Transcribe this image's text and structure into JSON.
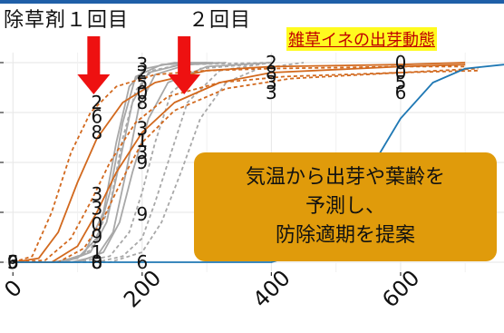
{
  "annotations": {
    "herbicide_label": "除草剤１回目",
    "second_label": "２回目",
    "title": "雑草イネの出芽動態",
    "callout_lines": [
      "気温から出芽や葉齢を",
      "予測し、",
      "防除適期を提案"
    ]
  },
  "colors": {
    "arrow": "#ee1111",
    "gray_curves": "#a8a8a8",
    "orange_curves": "#d2691e",
    "blue_curve": "#1f78b4",
    "callout_bg": "#e09b0b",
    "title_bg": "#fffb1f",
    "title_text": "#c00000"
  },
  "chart_data": {
    "type": "line",
    "title": "雑草イネの出芽動態",
    "xlabel": "",
    "ylabel": "",
    "xlim": [
      -20,
      760
    ],
    "ylim": [
      -0.05,
      1.05
    ],
    "grid": true,
    "x_ticks": [
      0,
      200,
      400,
      600
    ],
    "x_tick_labels": [
      "0",
      "200",
      "400",
      "600"
    ],
    "y_gridlines": [
      0,
      0.25,
      0.5,
      0.75,
      1.0
    ],
    "arrows_at_x": [
      125,
      265
    ],
    "series": [
      {
        "style": "gray-solid",
        "x": [
          0,
          60,
          100,
          130,
          150,
          170,
          190,
          230,
          300
        ],
        "y": [
          0,
          0.0,
          0.02,
          0.12,
          0.35,
          0.7,
          0.93,
          0.99,
          1.0
        ]
      },
      {
        "style": "gray-solid",
        "x": [
          0,
          80,
          120,
          145,
          165,
          185,
          210,
          260,
          320
        ],
        "y": [
          0,
          0.0,
          0.05,
          0.2,
          0.5,
          0.8,
          0.95,
          0.99,
          1.0
        ]
      },
      {
        "style": "gray-solid",
        "x": [
          0,
          90,
          130,
          155,
          175,
          195,
          220,
          270,
          330
        ],
        "y": [
          0,
          0.0,
          0.03,
          0.15,
          0.45,
          0.78,
          0.94,
          0.99,
          1.0
        ]
      },
      {
        "style": "gray-solid",
        "x": [
          0,
          70,
          110,
          140,
          160,
          180,
          205,
          250,
          310
        ],
        "y": [
          0,
          0.0,
          0.04,
          0.25,
          0.6,
          0.88,
          0.97,
          1.0,
          1.0
        ]
      },
      {
        "style": "gray-solid",
        "x": [
          0,
          100,
          140,
          165,
          185,
          210,
          240,
          300,
          400
        ],
        "y": [
          0,
          0.0,
          0.05,
          0.2,
          0.45,
          0.72,
          0.9,
          0.98,
          1.0
        ]
      },
      {
        "style": "gray-dashed",
        "x": [
          0,
          100,
          150,
          180,
          200,
          220,
          245,
          290,
          400
        ],
        "y": [
          0,
          0.0,
          0.03,
          0.15,
          0.35,
          0.6,
          0.85,
          0.97,
          1.0
        ]
      },
      {
        "style": "gray-dashed",
        "x": [
          0,
          130,
          170,
          200,
          220,
          245,
          270,
          320,
          400
        ],
        "y": [
          0,
          0.0,
          0.03,
          0.12,
          0.3,
          0.55,
          0.8,
          0.96,
          1.0
        ]
      },
      {
        "style": "gray-dashed",
        "x": [
          0,
          80,
          120,
          150,
          170,
          190,
          215,
          260,
          400
        ],
        "y": [
          0,
          0.0,
          0.06,
          0.28,
          0.62,
          0.86,
          0.96,
          0.99,
          1.0
        ]
      },
      {
        "style": "gray-dashed",
        "x": [
          0,
          150,
          200,
          230,
          260,
          290,
          330,
          380,
          450
        ],
        "y": [
          0,
          0.0,
          0.05,
          0.2,
          0.45,
          0.72,
          0.9,
          0.97,
          1.0
        ]
      },
      {
        "style": "orange-solid",
        "x": [
          0,
          40,
          70,
          100,
          130,
          170,
          220,
          300,
          400,
          600,
          700
        ],
        "y": [
          0,
          0.02,
          0.15,
          0.4,
          0.62,
          0.8,
          0.9,
          0.96,
          0.98,
          0.99,
          1.0
        ]
      },
      {
        "style": "orange-solid",
        "x": [
          0,
          60,
          100,
          130,
          160,
          200,
          250,
          320,
          400,
          600,
          700
        ],
        "y": [
          0,
          0.0,
          0.08,
          0.25,
          0.45,
          0.65,
          0.8,
          0.9,
          0.95,
          0.98,
          0.99
        ]
      },
      {
        "style": "orange-dashed",
        "x": [
          0,
          30,
          60,
          90,
          120,
          160,
          220,
          300,
          400,
          600,
          700
        ],
        "y": [
          0,
          0.03,
          0.25,
          0.55,
          0.75,
          0.88,
          0.94,
          0.96,
          0.97,
          0.98,
          0.98
        ]
      },
      {
        "style": "orange-dashed",
        "x": [
          0,
          50,
          90,
          120,
          150,
          190,
          240,
          320,
          420,
          600,
          720
        ],
        "y": [
          0,
          0.01,
          0.12,
          0.3,
          0.5,
          0.7,
          0.83,
          0.9,
          0.93,
          0.95,
          0.97
        ]
      },
      {
        "style": "orange-dashed",
        "x": [
          0,
          70,
          110,
          140,
          170,
          200,
          250,
          330,
          430,
          600,
          720
        ],
        "y": [
          0,
          0.0,
          0.07,
          0.22,
          0.42,
          0.6,
          0.76,
          0.87,
          0.92,
          0.95,
          0.96
        ]
      },
      {
        "style": "blue-solid",
        "x": [
          0,
          400,
          450,
          500,
          550,
          600,
          650,
          700,
          760
        ],
        "y": [
          0,
          0.0,
          0.05,
          0.2,
          0.45,
          0.72,
          0.9,
          0.97,
          0.99
        ]
      }
    ],
    "point_labels": [
      {
        "x": 0,
        "y": 0.0,
        "text": "9"
      },
      {
        "x": 0,
        "y": 0.0,
        "text": "6"
      },
      {
        "x": 0,
        "y": 0.0,
        "text": "3"
      },
      {
        "x": 130,
        "y": 0.8,
        "text": "2"
      },
      {
        "x": 130,
        "y": 0.73,
        "text": "6"
      },
      {
        "x": 130,
        "y": 0.65,
        "text": "8"
      },
      {
        "x": 130,
        "y": 0.34,
        "text": "3"
      },
      {
        "x": 130,
        "y": 0.27,
        "text": "3"
      },
      {
        "x": 130,
        "y": 0.19,
        "text": "0"
      },
      {
        "x": 130,
        "y": 0.13,
        "text": "9"
      },
      {
        "x": 130,
        "y": 0.05,
        "text": "1"
      },
      {
        "x": 130,
        "y": 0.0,
        "text": "0"
      },
      {
        "x": 130,
        "y": 0.0,
        "text": "8"
      },
      {
        "x": 200,
        "y": 0.99,
        "text": "3"
      },
      {
        "x": 200,
        "y": 0.95,
        "text": "2"
      },
      {
        "x": 200,
        "y": 0.9,
        "text": "5"
      },
      {
        "x": 200,
        "y": 0.85,
        "text": "0"
      },
      {
        "x": 200,
        "y": 0.8,
        "text": "8"
      },
      {
        "x": 200,
        "y": 0.67,
        "text": "3"
      },
      {
        "x": 200,
        "y": 0.61,
        "text": "1"
      },
      {
        "x": 200,
        "y": 0.55,
        "text": "3"
      },
      {
        "x": 200,
        "y": 0.5,
        "text": "9"
      },
      {
        "x": 200,
        "y": 0.24,
        "text": "9"
      },
      {
        "x": 200,
        "y": 0.0,
        "text": "6"
      },
      {
        "x": 400,
        "y": 1.0,
        "text": "2"
      },
      {
        "x": 400,
        "y": 0.95,
        "text": "8"
      },
      {
        "x": 400,
        "y": 0.9,
        "text": "3"
      },
      {
        "x": 400,
        "y": 0.85,
        "text": "3"
      },
      {
        "x": 600,
        "y": 1.0,
        "text": "0"
      },
      {
        "x": 600,
        "y": 0.95,
        "text": "0"
      },
      {
        "x": 600,
        "y": 0.9,
        "text": "5"
      },
      {
        "x": 600,
        "y": 0.85,
        "text": "6"
      }
    ]
  }
}
